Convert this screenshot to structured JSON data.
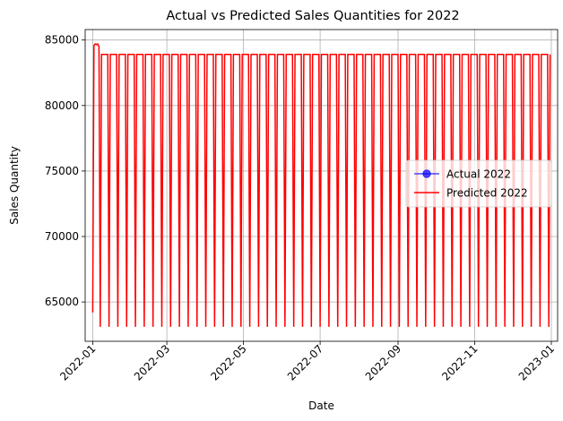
{
  "chart_data": {
    "type": "line",
    "title": "Actual vs Predicted Sales Quantities for 2022",
    "xlabel": "Date",
    "ylabel": "Sales Quantity",
    "x_range": [
      "2021-12-26",
      "2023-01-06"
    ],
    "ylim": [
      62000,
      85800
    ],
    "x_ticks": [
      "2022-01",
      "2022-03",
      "2022-05",
      "2022-07",
      "2022-09",
      "2022-11",
      "2023-01"
    ],
    "y_ticks": [
      65000,
      70000,
      75000,
      80000,
      85000
    ],
    "y_tick_labels": [
      "65000",
      "70000",
      "75000",
      "80000",
      "85000"
    ],
    "grid": true,
    "legend_position": "center-right",
    "series": [
      {
        "name": "Actual 2022",
        "color": "#0000ff",
        "marker": "circle",
        "points": []
      },
      {
        "name": "Predicted 2022",
        "color": "#ff0000",
        "pattern": "weekly oscillation between ~63000 and ~83900, starting 2022-01-01 with peaks ~84600 in first week, ending 2022-12-31",
        "start_date": "2022-01-01",
        "end_date": "2022-12-31",
        "high": 83900,
        "low": 63100,
        "initial_values": [
          64200,
          84600,
          84700,
          84650,
          84700,
          84500,
          63100
        ]
      }
    ]
  }
}
